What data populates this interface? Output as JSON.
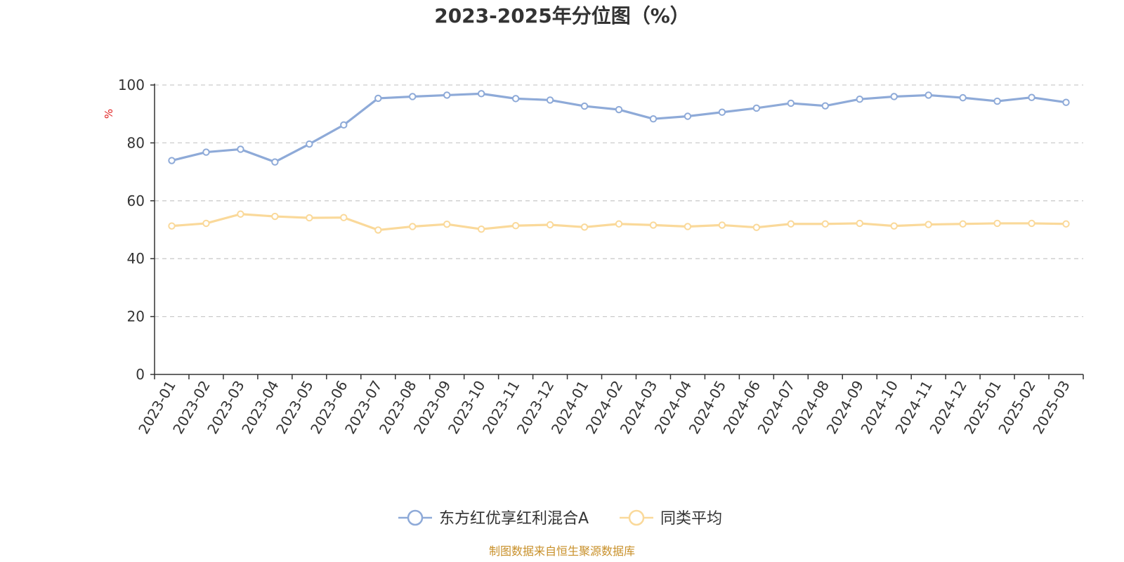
{
  "chart_data": {
    "type": "line",
    "title": "2023-2025年分位图（%）",
    "ylabel": "%",
    "ylim": [
      0,
      100
    ],
    "yticks": [
      0,
      20,
      40,
      60,
      80,
      100
    ],
    "grid": "horizontal-dashed",
    "legend_position": "bottom",
    "categories": [
      "2023-01",
      "2023-02",
      "2023-03",
      "2023-04",
      "2023-05",
      "2023-06",
      "2023-07",
      "2023-08",
      "2023-09",
      "2023-10",
      "2023-11",
      "2023-12",
      "2024-01",
      "2024-02",
      "2024-03",
      "2024-04",
      "2024-05",
      "2024-06",
      "2024-07",
      "2024-08",
      "2024-09",
      "2024-10",
      "2024-11",
      "2024-12",
      "2025-01",
      "2025-02",
      "2025-03"
    ],
    "series": [
      {
        "name": "东方红优享红利混合A",
        "color": "#8eaad8",
        "values": [
          73.9,
          76.8,
          77.8,
          73.4,
          79.6,
          86.2,
          95.4,
          96.0,
          96.5,
          97.0,
          95.3,
          94.8,
          92.7,
          91.5,
          88.3,
          89.2,
          90.6,
          92.0,
          93.7,
          92.8,
          95.1,
          96.0,
          96.5,
          95.6,
          94.4,
          95.7,
          94.0
        ]
      },
      {
        "name": "同类平均",
        "color": "#fad99a",
        "values": [
          51.3,
          52.2,
          55.4,
          54.6,
          54.1,
          54.2,
          49.9,
          51.1,
          51.9,
          50.2,
          51.4,
          51.7,
          50.9,
          52.0,
          51.6,
          51.1,
          51.6,
          50.8,
          52.0,
          52.0,
          52.2,
          51.3,
          51.8,
          52.0,
          52.2,
          52.2,
          52.0
        ]
      }
    ]
  },
  "source": "制图数据来自恒生聚源数据库"
}
